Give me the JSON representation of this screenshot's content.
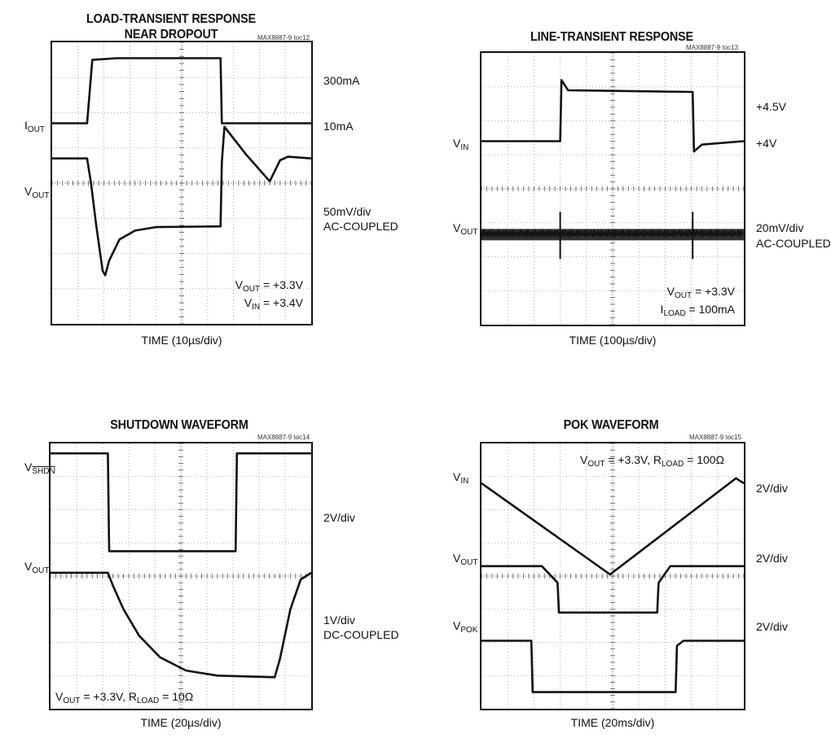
{
  "charts": [
    {
      "title_line1": "LOAD-TRANSIENT RESPONSE",
      "title_line2": "NEAR DROPOUT",
      "toc": "MAX8887-9 toc12",
      "xlabel": "TIME (10µs/div)",
      "left_labels": [
        {
          "main": "I",
          "sub": "OUT"
        },
        {
          "main": "V",
          "sub": "OUT"
        }
      ],
      "right_labels": [
        "300mA",
        "10mA",
        "50mV/div",
        "AC-COUPLED"
      ],
      "note_lines": [
        {
          "a": "V",
          "sub": "OUT",
          "b": " = +3.3V"
        },
        {
          "a": "V",
          "sub": "IN",
          "b": " = +3.4V"
        }
      ]
    },
    {
      "title_line1": "LINE-TRANSIENT RESPONSE",
      "toc": "MAX8887-9 toc13",
      "xlabel": "TIME (100µs/div)",
      "left_labels": [
        {
          "main": "V",
          "sub": "IN"
        },
        {
          "main": "V",
          "sub": "OUT"
        }
      ],
      "right_labels": [
        "+4.5V",
        "+4V",
        "20mV/div",
        "AC-COUPLED"
      ],
      "note_lines": [
        {
          "a": "V",
          "sub": "OUT",
          "b": " = +3.3V"
        },
        {
          "a": "I",
          "sub": "LOAD",
          "b": " = 100mA"
        }
      ]
    },
    {
      "title_line1": "SHUTDOWN WAVEFORM",
      "toc": "MAX8887-9 toc14",
      "xlabel": "TIME (20µs/div)",
      "left_labels": [
        {
          "main": "V",
          "sub": "SHDN",
          "overline": true
        },
        {
          "main": "V",
          "sub": "OUT"
        }
      ],
      "right_labels": [
        "2V/div",
        "1V/div",
        "DC-COUPLED"
      ],
      "note_lines": [
        {
          "a": "V",
          "sub": "OUT",
          "b": " = +3.3V, R",
          "sub2": "LOAD",
          "c": " = 10Ω"
        }
      ]
    },
    {
      "title_line1": "POK WAVEFORM",
      "toc": "MAX8887-9 toc15",
      "xlabel": "TIME (20ms/div)",
      "left_labels": [
        {
          "main": "V",
          "sub": "IN"
        },
        {
          "main": "V",
          "sub": "OUT"
        },
        {
          "main": "V",
          "sub": "POK"
        }
      ],
      "right_labels": [
        "2V/div",
        "2V/div",
        "2V/div"
      ],
      "note_lines": [
        {
          "a": "V",
          "sub": "OUT",
          "b": " = +3.3V, R",
          "sub2": "LOAD",
          "c": " = 100Ω"
        }
      ]
    }
  ],
  "chart_data": [
    {
      "type": "line",
      "title": "LOAD-TRANSIENT RESPONSE NEAR DROPOUT",
      "xlabel": "TIME (10µs/div)",
      "x_divisions": 10,
      "y_divisions": 8,
      "series": [
        {
          "name": "IOUT",
          "unit": "div",
          "points": [
            [
              0,
              2.3
            ],
            [
              1.35,
              2.3
            ],
            [
              1.55,
              0.5
            ],
            [
              2.5,
              0.45
            ],
            [
              6.5,
              0.45
            ],
            [
              6.55,
              2.3
            ],
            [
              10,
              2.3
            ]
          ]
        },
        {
          "name": "VOUT",
          "unit": "div",
          "points": [
            [
              0,
              3.3
            ],
            [
              1.35,
              3.3
            ],
            [
              1.5,
              4.0
            ],
            [
              1.7,
              5.2
            ],
            [
              1.95,
              6.5
            ],
            [
              2.05,
              6.62
            ],
            [
              2.2,
              6.2
            ],
            [
              2.6,
              5.6
            ],
            [
              3.2,
              5.35
            ],
            [
              4.0,
              5.25
            ],
            [
              6.5,
              5.23
            ],
            [
              6.55,
              3.4
            ],
            [
              6.65,
              2.4
            ],
            [
              7.5,
              3.2
            ],
            [
              8.4,
              3.95
            ],
            [
              8.8,
              3.35
            ],
            [
              9.1,
              3.25
            ],
            [
              10,
              3.3
            ]
          ]
        }
      ],
      "annotation": "VOUT = +3.3V, VIN = +3.4V"
    },
    {
      "type": "line",
      "title": "LINE-TRANSIENT RESPONSE",
      "xlabel": "TIME (100µs/div)",
      "x_divisions": 10,
      "y_divisions": 8,
      "series": [
        {
          "name": "VIN",
          "unit": "div",
          "points": [
            [
              0,
              2.6
            ],
            [
              3.0,
              2.6
            ],
            [
              3.05,
              0.8
            ],
            [
              3.3,
              1.1
            ],
            [
              8.05,
              1.15
            ],
            [
              8.1,
              2.9
            ],
            [
              8.4,
              2.7
            ],
            [
              10,
              2.6
            ]
          ]
        },
        {
          "name": "VOUT",
          "unit": "div",
          "noise": true,
          "points": [
            [
              0,
              5.35
            ],
            [
              10,
              5.35
            ]
          ]
        }
      ],
      "annotation": "VOUT = +3.3V, ILOAD = 100mA"
    },
    {
      "type": "line",
      "title": "SHUTDOWN WAVEFORM",
      "xlabel": "TIME (20µs/div)",
      "x_divisions": 10,
      "y_divisions": 8,
      "series": [
        {
          "name": "VSHDN",
          "unit": "div",
          "points": [
            [
              0,
              0.3
            ],
            [
              2.2,
              0.3
            ],
            [
              2.25,
              3.25
            ],
            [
              7.1,
              3.25
            ],
            [
              7.15,
              0.3
            ],
            [
              10,
              0.3
            ]
          ]
        },
        {
          "name": "VOUT",
          "unit": "div",
          "points": [
            [
              0,
              3.9
            ],
            [
              2.2,
              3.9
            ],
            [
              2.4,
              4.3
            ],
            [
              2.8,
              5.0
            ],
            [
              3.4,
              5.8
            ],
            [
              4.2,
              6.45
            ],
            [
              5.2,
              6.85
            ],
            [
              6.4,
              7.0
            ],
            [
              8.6,
              7.05
            ],
            [
              8.8,
              6.5
            ],
            [
              9.2,
              5.0
            ],
            [
              9.6,
              4.1
            ],
            [
              10,
              3.9
            ]
          ]
        }
      ],
      "annotation": "VOUT = +3.3V, RLOAD = 10Ω"
    },
    {
      "type": "line",
      "title": "POK WAVEFORM",
      "xlabel": "TIME (20ms/div)",
      "x_divisions": 10,
      "y_divisions": 8,
      "series": [
        {
          "name": "VIN",
          "unit": "div",
          "points": [
            [
              0,
              1.2
            ],
            [
              4.9,
              3.95
            ],
            [
              9.7,
              1.05
            ],
            [
              10,
              1.2
            ]
          ]
        },
        {
          "name": "VOUT",
          "unit": "div",
          "points": [
            [
              0,
              3.7
            ],
            [
              2.3,
              3.7
            ],
            [
              2.9,
              4.2
            ],
            [
              2.95,
              5.1
            ],
            [
              6.7,
              5.1
            ],
            [
              6.75,
              4.2
            ],
            [
              7.2,
              3.7
            ],
            [
              10,
              3.7
            ]
          ]
        },
        {
          "name": "VPOK",
          "unit": "div",
          "points": [
            [
              0,
              5.95
            ],
            [
              1.9,
              5.95
            ],
            [
              1.95,
              7.5
            ],
            [
              7.4,
              7.5
            ],
            [
              7.45,
              6.1
            ],
            [
              7.7,
              5.95
            ],
            [
              10,
              5.95
            ]
          ]
        }
      ],
      "annotation": "VOUT = +3.3V, RLOAD = 100Ω"
    }
  ]
}
